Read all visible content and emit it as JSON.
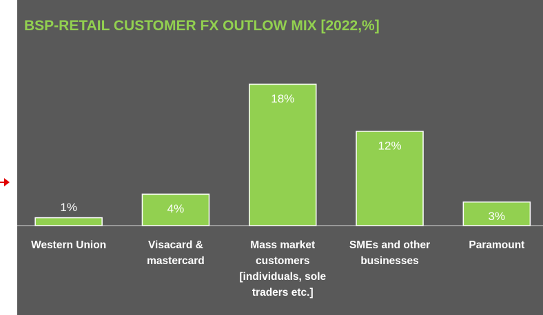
{
  "chart_data": {
    "type": "bar",
    "title": "BSP-RETAIL CUSTOMER FX OUTLOW MIX [2022,%]",
    "categories": [
      "Western Union",
      "Visacard & mastercard",
      "Mass market customers [individuals, sole traders etc.]",
      "SMEs and other businesses",
      "Paramount"
    ],
    "values": [
      1,
      4,
      18,
      12,
      3
    ],
    "value_labels": [
      "1%",
      "4%",
      "18%",
      "12%",
      "3%"
    ],
    "color": "#92d050",
    "ylim": [
      0,
      19
    ]
  }
}
